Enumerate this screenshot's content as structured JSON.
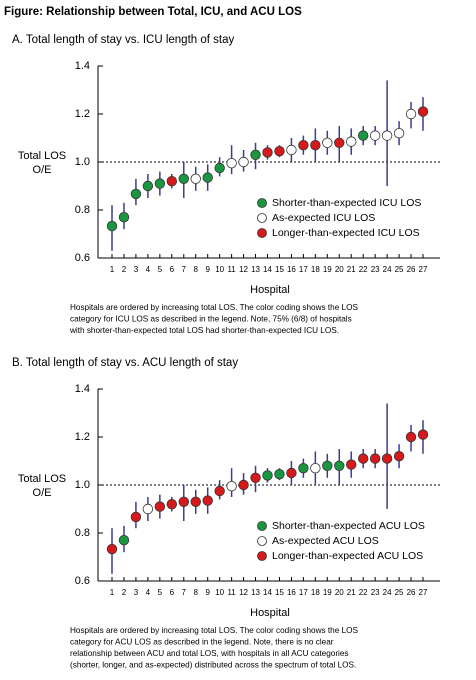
{
  "title": "Figure:  Relationship between Total, ICU, and ACU LOS",
  "chart_data": [
    {
      "type": "dotplot",
      "panel_title": "A.  Total length of stay vs. ICU length of stay",
      "ylabel": [
        "Total LOS",
        "O/E"
      ],
      "xlabel": "Hospital",
      "categories": [
        "1",
        "2",
        "3",
        "4",
        "5",
        "6",
        "7",
        "8",
        "9",
        "10",
        "11",
        "12",
        "13",
        "14",
        "15",
        "16",
        "17",
        "18",
        "19",
        "20",
        "21",
        "22",
        "23",
        "24",
        "25",
        "26",
        "27"
      ],
      "values": [
        0.733,
        0.77,
        0.867,
        0.9,
        0.91,
        0.92,
        0.93,
        0.93,
        0.935,
        0.975,
        0.995,
        1.0,
        1.03,
        1.04,
        1.045,
        1.05,
        1.07,
        1.07,
        1.08,
        1.08,
        1.085,
        1.11,
        1.11,
        1.11,
        1.12,
        1.2,
        1.21
      ],
      "low": [
        0.63,
        0.72,
        0.82,
        0.85,
        0.86,
        0.89,
        0.85,
        0.88,
        0.88,
        0.94,
        0.95,
        0.96,
        0.97,
        1.01,
        1.02,
        1.0,
        1.03,
        1.0,
        1.03,
        1.0,
        1.03,
        1.07,
        1.07,
        0.9,
        1.07,
        1.14,
        1.13
      ],
      "high": [
        0.82,
        0.83,
        0.93,
        0.95,
        0.96,
        0.95,
        1.0,
        0.98,
        0.99,
        1.02,
        1.07,
        1.05,
        1.08,
        1.07,
        1.07,
        1.1,
        1.11,
        1.14,
        1.13,
        1.15,
        1.14,
        1.15,
        1.15,
        1.34,
        1.17,
        1.25,
        1.27
      ],
      "groups": [
        0,
        0,
        0,
        0,
        0,
        2,
        0,
        1,
        0,
        0,
        1,
        1,
        0,
        2,
        2,
        1,
        2,
        2,
        1,
        2,
        1,
        0,
        1,
        1,
        1,
        1,
        2
      ],
      "legend": [
        {
          "name": "Shorter-than-expected ICU LOS",
          "color": "#1a9641"
        },
        {
          "name": "As-expected ICU LOS",
          "color": "#ffffff"
        },
        {
          "name": "Longer-than-expected ICU LOS",
          "color": "#d7191c"
        }
      ],
      "ylim": [
        0.6,
        1.4
      ],
      "yticks": [
        0.6,
        0.8,
        {
          "value": 1,
          "label": "1.0"
        },
        1.2,
        1.4
      ],
      "refline": 1,
      "note": [
        "Hospitals are ordered by increasing total LOS.  The color coding shows the LOS",
        "category for ICU LOS as described in the legend.  Note, 75% (6/8) of hospitals",
        "with shorter-than-expected total LOS had shorter-than-expected ICU LOS."
      ]
    },
    {
      "type": "dotplot",
      "panel_title": "B.  Total length of stay vs. ACU length of stay",
      "ylabel": [
        "Total LOS",
        "O/E"
      ],
      "xlabel": "Hospital",
      "categories": [
        "1",
        "2",
        "3",
        "4",
        "5",
        "6",
        "7",
        "8",
        "9",
        "10",
        "11",
        "12",
        "13",
        "14",
        "15",
        "16",
        "17",
        "18",
        "19",
        "20",
        "21",
        "22",
        "23",
        "24",
        "25",
        "26",
        "27"
      ],
      "values": [
        0.733,
        0.77,
        0.867,
        0.9,
        0.91,
        0.92,
        0.93,
        0.93,
        0.935,
        0.975,
        0.995,
        1.0,
        1.03,
        1.04,
        1.045,
        1.05,
        1.07,
        1.07,
        1.08,
        1.08,
        1.085,
        1.11,
        1.11,
        1.11,
        1.12,
        1.2,
        1.21
      ],
      "low": [
        0.63,
        0.72,
        0.82,
        0.85,
        0.86,
        0.89,
        0.85,
        0.88,
        0.88,
        0.94,
        0.95,
        0.96,
        0.97,
        1.01,
        1.02,
        1.0,
        1.03,
        1.0,
        1.03,
        1.0,
        1.03,
        1.07,
        1.07,
        0.9,
        1.07,
        1.14,
        1.13
      ],
      "high": [
        0.82,
        0.83,
        0.93,
        0.95,
        0.96,
        0.95,
        1.0,
        0.98,
        0.99,
        1.02,
        1.07,
        1.05,
        1.08,
        1.07,
        1.07,
        1.1,
        1.11,
        1.14,
        1.13,
        1.15,
        1.14,
        1.15,
        1.15,
        1.34,
        1.17,
        1.25,
        1.27
      ],
      "groups": [
        2,
        0,
        2,
        1,
        2,
        2,
        2,
        2,
        2,
        2,
        1,
        2,
        2,
        0,
        0,
        2,
        0,
        1,
        0,
        0,
        2,
        2,
        2,
        2,
        2,
        2,
        2
      ],
      "legend": [
        {
          "name": "Shorter-than-expected ACU LOS",
          "color": "#1a9641"
        },
        {
          "name": "As-expected ACU LOS",
          "color": "#ffffff"
        },
        {
          "name": "Longer-than-expected ACU LOS",
          "color": "#d7191c"
        }
      ],
      "ylim": [
        0.6,
        1.4
      ],
      "yticks": [
        0.6,
        0.8,
        {
          "value": 1,
          "label": "1.0"
        },
        1.2,
        1.4
      ],
      "refline": 1,
      "note": [
        "Hospitals are ordered by increasing total LOS. The color coding shows the LOS",
        "category for ACU LOS as described in the legend. Note, there is no clear",
        "relationship between ACU and total LOS, with hospitals in all ACU categories",
        "(shorter, longer, and as-expected) distributed across the spectrum of total LOS."
      ]
    }
  ]
}
